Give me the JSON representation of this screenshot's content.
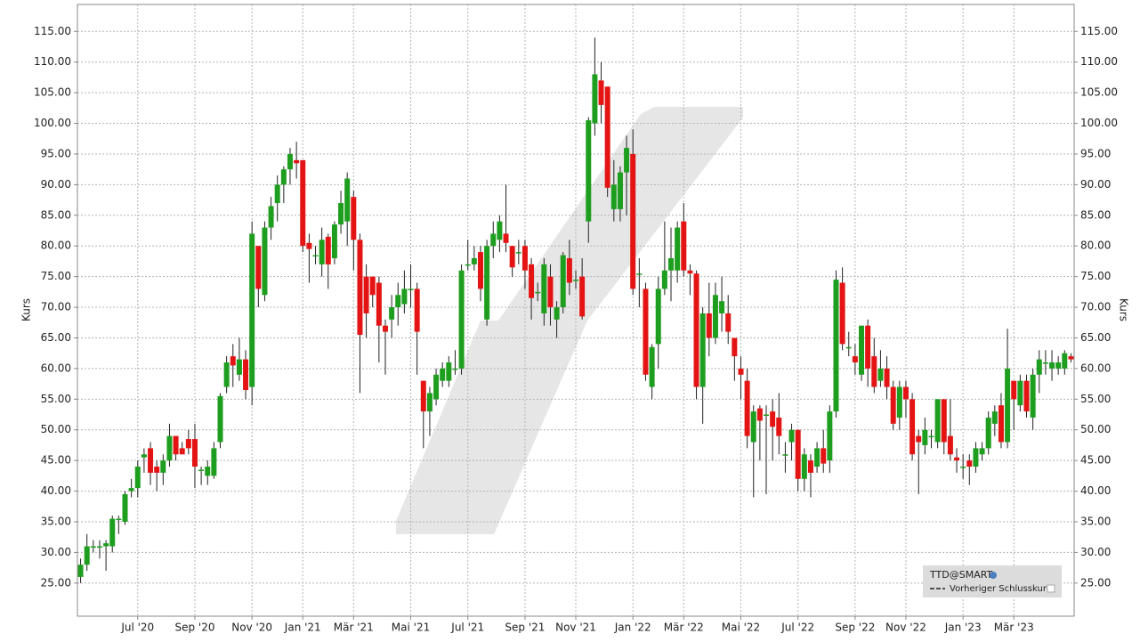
{
  "chart_data": {
    "type": "candlestick",
    "y_label": "Kurs",
    "legend_title": "TTD@SMART",
    "legend_items": [
      "Vorheriger Schlusskurs"
    ],
    "up_color": "#1e9e1e",
    "down_color": "#e51414",
    "wick_color": "#222222",
    "grid": true,
    "ylim": [
      19.6,
      119.4
    ],
    "yticks": [
      {
        "value": 25,
        "label": "25.00"
      },
      {
        "value": 30,
        "label": "30.00"
      },
      {
        "value": 35,
        "label": "35.00"
      },
      {
        "value": 40,
        "label": "40.00"
      },
      {
        "value": 45,
        "label": "45.00"
      },
      {
        "value": 50,
        "label": "50.00"
      },
      {
        "value": 55,
        "label": "55.00"
      },
      {
        "value": 60,
        "label": "60.00"
      },
      {
        "value": 65,
        "label": "65.00"
      },
      {
        "value": 70,
        "label": "70.00"
      },
      {
        "value": 75,
        "label": "75.00"
      },
      {
        "value": 80,
        "label": "80.00"
      },
      {
        "value": 85,
        "label": "85.00"
      },
      {
        "value": 90,
        "label": "90.00"
      },
      {
        "value": 95,
        "label": "95.00"
      },
      {
        "value": 100,
        "label": "100.00"
      },
      {
        "value": 105,
        "label": "105.00"
      },
      {
        "value": 110,
        "label": "110.00"
      },
      {
        "value": 115,
        "label": "115.00"
      }
    ],
    "categories": [
      null,
      null,
      null,
      null,
      null,
      null,
      null,
      null,
      null,
      "Jul '20",
      null,
      null,
      null,
      null,
      null,
      null,
      null,
      null,
      "Sep '20",
      null,
      null,
      null,
      null,
      null,
      null,
      null,
      null,
      "Nov '20",
      null,
      null,
      null,
      null,
      null,
      null,
      null,
      "Jan '21",
      null,
      null,
      null,
      null,
      null,
      null,
      null,
      "Mär '21",
      null,
      null,
      null,
      null,
      null,
      null,
      null,
      null,
      "Mai '21",
      null,
      null,
      null,
      null,
      null,
      null,
      null,
      null,
      "Jul '21",
      null,
      null,
      null,
      null,
      null,
      null,
      null,
      null,
      "Sep '21",
      null,
      null,
      null,
      null,
      null,
      null,
      null,
      "Nov '21",
      null,
      null,
      null,
      null,
      null,
      null,
      null,
      null,
      "Jan '22",
      null,
      null,
      null,
      null,
      null,
      null,
      null,
      "Mär '22",
      null,
      null,
      null,
      null,
      null,
      null,
      null,
      null,
      "Mai '22",
      null,
      null,
      null,
      null,
      null,
      null,
      null,
      null,
      "Jul '22",
      null,
      null,
      null,
      null,
      null,
      null,
      null,
      null,
      "Sep '22",
      null,
      null,
      null,
      null,
      null,
      null,
      null,
      "Nov '22",
      null,
      null,
      null,
      null,
      null,
      null,
      null,
      null,
      "Jan '23",
      null,
      null,
      null,
      null,
      null,
      null,
      null,
      "Mär '23",
      null,
      null,
      null,
      null,
      null,
      null,
      null,
      null,
      null
    ],
    "values": [
      [
        26,
        29,
        25,
        28
      ],
      [
        28,
        33,
        27,
        31
      ],
      [
        31,
        32,
        30,
        31
      ],
      [
        31,
        32,
        29,
        31
      ],
      [
        31,
        32,
        27,
        31.5
      ],
      [
        31,
        36,
        30,
        35.5
      ],
      [
        35.5,
        36,
        33,
        35.5
      ],
      [
        35,
        40,
        34.5,
        39.5
      ],
      [
        40,
        42,
        39,
        40.5
      ],
      [
        40.5,
        45,
        39,
        44
      ],
      [
        45.5,
        47,
        43,
        46
      ],
      [
        47,
        48,
        41,
        43
      ],
      [
        44,
        45,
        40,
        43
      ],
      [
        43,
        46,
        41,
        45
      ],
      [
        45,
        51,
        44,
        49
      ],
      [
        49,
        49,
        45,
        46
      ],
      [
        47,
        48,
        46,
        46
      ],
      [
        48.5,
        50,
        46,
        47
      ],
      [
        48.5,
        51,
        40.5,
        44
      ],
      [
        43.5,
        44,
        41,
        43.5
      ],
      [
        42.5,
        45,
        41,
        44
      ],
      [
        42.5,
        48,
        42,
        47
      ],
      [
        48,
        56,
        47,
        55.5
      ],
      [
        57,
        62,
        56,
        61
      ],
      [
        62,
        64,
        57,
        60.5
      ],
      [
        59,
        65,
        58,
        61.5
      ],
      [
        61.5,
        63,
        55,
        56.5
      ],
      [
        57,
        84,
        54,
        82
      ],
      [
        80,
        80,
        70,
        73
      ],
      [
        72,
        84,
        71,
        83
      ],
      [
        83,
        88,
        81,
        86.5
      ],
      [
        87,
        91.5,
        84,
        90
      ],
      [
        90,
        93,
        87,
        92.5
      ],
      [
        92.5,
        96,
        90,
        95
      ],
      [
        94,
        97,
        91,
        93.5
      ],
      [
        94,
        94,
        79,
        80
      ],
      [
        80.5,
        82,
        74,
        79.5
      ],
      [
        78.5,
        80,
        77,
        78.5
      ],
      [
        77,
        83,
        75,
        81
      ],
      [
        81.5,
        82,
        73,
        77
      ],
      [
        78,
        84,
        77,
        83.5
      ],
      [
        83.5,
        89,
        82,
        87
      ],
      [
        84,
        92,
        80,
        91
      ],
      [
        88,
        89,
        76,
        81
      ],
      [
        81,
        82,
        56,
        65.5
      ],
      [
        75,
        77,
        65,
        69
      ],
      [
        75,
        75,
        70,
        72
      ],
      [
        74,
        75,
        61,
        67
      ],
      [
        67,
        68,
        59,
        66
      ],
      [
        68,
        72,
        65,
        70
      ],
      [
        70,
        74,
        67,
        72
      ],
      [
        70.5,
        76,
        69,
        73
      ],
      [
        73,
        77,
        70,
        73
      ],
      [
        73,
        74,
        59,
        66
      ],
      [
        58,
        58,
        47,
        53
      ],
      [
        53,
        57,
        49,
        56
      ],
      [
        55,
        60,
        54,
        59
      ],
      [
        58,
        61,
        57,
        60
      ],
      [
        58,
        62,
        57,
        61
      ],
      [
        60,
        63,
        59,
        60
      ],
      [
        60,
        77,
        59,
        76
      ],
      [
        77,
        81,
        76,
        77
      ],
      [
        77,
        80,
        76,
        78
      ],
      [
        79,
        80,
        71,
        73
      ],
      [
        68,
        81,
        67,
        80
      ],
      [
        80,
        84,
        78,
        82
      ],
      [
        81,
        85,
        79,
        84
      ],
      [
        82,
        90,
        79,
        80.5
      ],
      [
        80,
        80,
        75,
        76.5
      ],
      [
        79,
        81,
        77,
        79
      ],
      [
        80,
        81,
        73,
        76
      ],
      [
        77,
        78,
        68,
        71.5
      ],
      [
        72.5,
        74,
        71,
        72.5
      ],
      [
        69,
        78,
        67,
        77
      ],
      [
        75,
        77,
        67,
        70
      ],
      [
        68,
        71,
        65,
        70
      ],
      [
        70,
        79,
        69,
        78.5
      ],
      [
        78,
        81,
        72,
        74
      ],
      [
        74.5,
        76,
        73,
        74.5
      ],
      [
        75,
        78,
        68,
        68.5
      ],
      [
        84,
        101,
        80.5,
        100.5
      ],
      [
        100,
        114,
        98,
        108
      ],
      [
        107,
        110,
        100,
        103
      ],
      [
        106,
        106,
        88,
        89.5
      ],
      [
        86,
        94,
        84,
        90
      ],
      [
        86,
        93,
        84,
        92
      ],
      [
        92,
        98,
        85,
        96
      ],
      [
        95,
        99,
        72,
        73
      ],
      [
        75.5,
        78,
        70,
        75.5
      ],
      [
        73,
        74,
        58,
        59
      ],
      [
        57,
        64,
        55,
        63.5
      ],
      [
        64,
        75,
        60,
        73
      ],
      [
        73,
        84,
        72,
        76
      ],
      [
        76,
        83,
        71,
        78
      ],
      [
        76,
        84,
        74,
        83
      ],
      [
        84,
        87,
        75,
        76
      ],
      [
        76,
        77,
        72,
        75.5
      ],
      [
        75.5,
        76,
        55,
        57
      ],
      [
        57,
        70,
        51,
        69
      ],
      [
        69,
        74,
        62,
        65
      ],
      [
        65,
        74,
        64,
        72
      ],
      [
        69,
        75,
        66,
        71
      ],
      [
        69,
        72,
        64,
        66
      ],
      [
        65,
        65,
        58,
        62
      ],
      [
        60,
        62,
        55,
        59
      ],
      [
        58,
        60,
        47,
        49
      ],
      [
        48,
        54,
        39,
        53
      ],
      [
        53.5,
        54,
        45,
        51.5
      ],
      [
        52.5,
        54,
        39.5,
        52.5
      ],
      [
        53,
        55,
        45,
        50.5
      ],
      [
        52,
        56,
        46,
        49
      ],
      [
        46,
        48,
        43,
        46
      ],
      [
        48,
        51,
        45,
        50
      ],
      [
        50,
        50,
        40,
        42
      ],
      [
        42,
        47,
        40,
        46
      ],
      [
        45,
        46,
        39,
        43
      ],
      [
        44,
        48,
        43,
        47
      ],
      [
        47,
        50,
        43,
        44.5
      ],
      [
        45,
        54,
        43,
        53
      ],
      [
        53,
        76,
        52,
        74.5
      ],
      [
        74,
        76.5,
        63,
        64
      ],
      [
        63.5,
        66,
        62,
        63.5
      ],
      [
        62,
        64,
        59,
        61
      ],
      [
        59,
        67,
        58,
        67
      ],
      [
        67,
        68,
        57,
        60
      ],
      [
        62,
        65,
        56,
        57
      ],
      [
        58,
        63,
        57,
        60
      ],
      [
        60,
        62,
        55,
        57
      ],
      [
        57,
        58,
        50,
        51
      ],
      [
        52,
        58,
        50,
        57
      ],
      [
        57,
        58,
        52,
        55
      ],
      [
        55,
        56,
        45,
        46
      ],
      [
        49,
        50,
        39.5,
        48
      ],
      [
        47.5,
        52,
        46,
        50
      ],
      [
        49,
        50,
        47,
        49
      ],
      [
        48,
        55,
        47,
        55
      ],
      [
        55,
        55,
        46,
        48
      ],
      [
        49,
        55,
        45,
        46
      ],
      [
        45.5,
        47,
        43,
        45
      ],
      [
        44,
        46,
        42,
        44
      ],
      [
        45,
        46,
        41,
        44
      ],
      [
        44,
        48,
        43,
        47
      ],
      [
        46,
        48,
        45,
        47
      ],
      [
        47,
        53,
        46,
        52
      ],
      [
        51,
        54,
        49,
        53
      ],
      [
        54,
        56,
        47,
        48
      ],
      [
        48,
        66.5,
        47,
        60
      ],
      [
        58,
        58,
        50,
        55
      ],
      [
        54,
        59,
        53,
        58
      ],
      [
        58,
        59,
        52,
        53
      ],
      [
        52,
        60,
        50,
        59
      ],
      [
        59,
        63,
        56,
        61.5
      ],
      [
        61,
        63,
        59,
        61
      ],
      [
        60,
        63,
        58,
        61
      ],
      [
        60,
        62,
        59,
        61
      ],
      [
        60,
        63,
        59,
        62.5
      ],
      [
        62,
        62.5,
        61,
        61.5
      ]
    ]
  }
}
